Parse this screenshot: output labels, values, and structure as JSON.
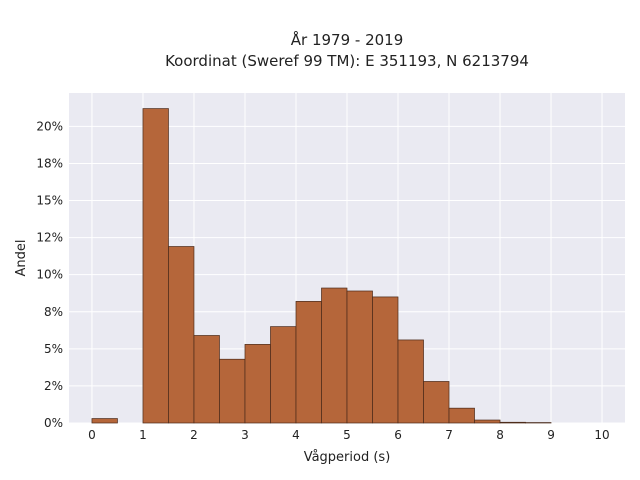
{
  "chart_data": {
    "type": "bar",
    "title_line1": "År 1979 - 2019",
    "title_line2": "Koordinat (Sweref 99 TM): E 351193, N 6213794",
    "xlabel": "Vågperiod (s)",
    "ylabel": "Andel",
    "xlim": [
      -0.45,
      10.45
    ],
    "ylim": [
      0,
      0.2225
    ],
    "x_ticks": [
      0,
      1,
      2,
      3,
      4,
      5,
      6,
      7,
      8,
      9,
      10
    ],
    "x_tick_labels": [
      "0",
      "1",
      "2",
      "3",
      "4",
      "5",
      "6",
      "7",
      "8",
      "9",
      "10"
    ],
    "y_ticks": [
      0,
      0.025,
      0.05,
      0.075,
      0.1,
      0.125,
      0.15,
      0.175,
      0.2
    ],
    "y_tick_labels": [
      "0%",
      "2%",
      "5%",
      "8%",
      "10%",
      "12%",
      "15%",
      "18%",
      "20%"
    ],
    "bin_width": 0.5,
    "bins": [
      {
        "x0": 0.0,
        "value": 0.003
      },
      {
        "x0": 1.0,
        "value": 0.212
      },
      {
        "x0": 1.5,
        "value": 0.119
      },
      {
        "x0": 2.0,
        "value": 0.059
      },
      {
        "x0": 2.5,
        "value": 0.043
      },
      {
        "x0": 3.0,
        "value": 0.053
      },
      {
        "x0": 3.5,
        "value": 0.065
      },
      {
        "x0": 4.0,
        "value": 0.082
      },
      {
        "x0": 4.5,
        "value": 0.091
      },
      {
        "x0": 5.0,
        "value": 0.089
      },
      {
        "x0": 5.5,
        "value": 0.085
      },
      {
        "x0": 6.0,
        "value": 0.056
      },
      {
        "x0": 6.5,
        "value": 0.028
      },
      {
        "x0": 7.0,
        "value": 0.01
      },
      {
        "x0": 7.5,
        "value": 0.002
      },
      {
        "x0": 8.0,
        "value": 0.0005
      },
      {
        "x0": 8.5,
        "value": 0.0003
      }
    ],
    "grid": true,
    "colors": {
      "bar_fill": "#b5663a",
      "bar_stroke": "#4a2a1a",
      "plot_background": "#eaeaf2",
      "grid": "#ffffff"
    }
  }
}
